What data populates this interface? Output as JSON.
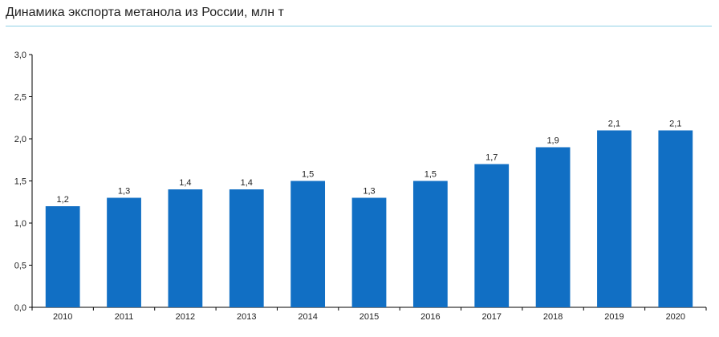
{
  "colors": {
    "bar": "#116fc4",
    "title_rule": "#8fd1e6",
    "axis": "#000000",
    "text": "#222222"
  },
  "chart_data": {
    "type": "bar",
    "title": "Динамика экспорта метанола из России, млн т",
    "xlabel": "",
    "ylabel": "",
    "ylim": [
      0,
      3
    ],
    "yticks": [
      0,
      0.5,
      1.0,
      1.5,
      2.0,
      2.5,
      3.0
    ],
    "ytick_labels": [
      "0,0",
      "0,5",
      "1,0",
      "1,5",
      "2,0",
      "2,5",
      "3,0"
    ],
    "categories": [
      "2010",
      "2011",
      "2012",
      "2013",
      "2014",
      "2015",
      "2016",
      "2017",
      "2018",
      "2019",
      "2020"
    ],
    "values": [
      1.2,
      1.3,
      1.4,
      1.4,
      1.5,
      1.3,
      1.5,
      1.7,
      1.9,
      2.1,
      2.1
    ],
    "value_labels": [
      "1,2",
      "1,3",
      "1,4",
      "1,4",
      "1,5",
      "1,3",
      "1,5",
      "1,7",
      "1,9",
      "2,1",
      "2,1"
    ],
    "grid": false,
    "legend": "none"
  }
}
